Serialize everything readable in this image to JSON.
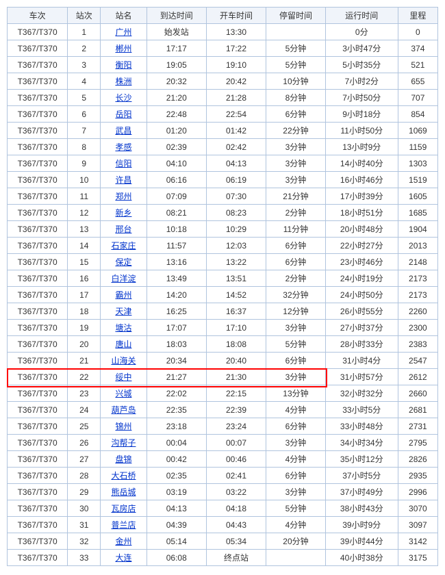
{
  "table": {
    "columns": [
      "车次",
      "站次",
      "站名",
      "到达时间",
      "开车时间",
      "停留时间",
      "运行时间",
      "里程"
    ],
    "highlight_row_index": 21,
    "highlight_color": "#ff0000",
    "link_color": "#0033cc",
    "border_color": "#b0c4de",
    "header_bg": "#f0f4fa",
    "rows": [
      {
        "train": "T367/T370",
        "seq": "1",
        "station": "广州",
        "arrive": "始发站",
        "depart": "13:30",
        "stop": "",
        "run": "0分",
        "dist": "0"
      },
      {
        "train": "T367/T370",
        "seq": "2",
        "station": "郴州",
        "arrive": "17:17",
        "depart": "17:22",
        "stop": "5分钟",
        "run": "3小时47分",
        "dist": "374"
      },
      {
        "train": "T367/T370",
        "seq": "3",
        "station": "衡阳",
        "arrive": "19:05",
        "depart": "19:10",
        "stop": "5分钟",
        "run": "5小时35分",
        "dist": "521"
      },
      {
        "train": "T367/T370",
        "seq": "4",
        "station": "株洲",
        "arrive": "20:32",
        "depart": "20:42",
        "stop": "10分钟",
        "run": "7小时2分",
        "dist": "655"
      },
      {
        "train": "T367/T370",
        "seq": "5",
        "station": "长沙",
        "arrive": "21:20",
        "depart": "21:28",
        "stop": "8分钟",
        "run": "7小时50分",
        "dist": "707"
      },
      {
        "train": "T367/T370",
        "seq": "6",
        "station": "岳阳",
        "arrive": "22:48",
        "depart": "22:54",
        "stop": "6分钟",
        "run": "9小时18分",
        "dist": "854"
      },
      {
        "train": "T367/T370",
        "seq": "7",
        "station": "武昌",
        "arrive": "01:20",
        "depart": "01:42",
        "stop": "22分钟",
        "run": "11小时50分",
        "dist": "1069"
      },
      {
        "train": "T367/T370",
        "seq": "8",
        "station": "孝感",
        "arrive": "02:39",
        "depart": "02:42",
        "stop": "3分钟",
        "run": "13小时9分",
        "dist": "1159"
      },
      {
        "train": "T367/T370",
        "seq": "9",
        "station": "信阳",
        "arrive": "04:10",
        "depart": "04:13",
        "stop": "3分钟",
        "run": "14小时40分",
        "dist": "1303"
      },
      {
        "train": "T367/T370",
        "seq": "10",
        "station": "许昌",
        "arrive": "06:16",
        "depart": "06:19",
        "stop": "3分钟",
        "run": "16小时46分",
        "dist": "1519"
      },
      {
        "train": "T367/T370",
        "seq": "11",
        "station": "郑州",
        "arrive": "07:09",
        "depart": "07:30",
        "stop": "21分钟",
        "run": "17小时39分",
        "dist": "1605"
      },
      {
        "train": "T367/T370",
        "seq": "12",
        "station": "新乡",
        "arrive": "08:21",
        "depart": "08:23",
        "stop": "2分钟",
        "run": "18小时51分",
        "dist": "1685"
      },
      {
        "train": "T367/T370",
        "seq": "13",
        "station": "邢台",
        "arrive": "10:18",
        "depart": "10:29",
        "stop": "11分钟",
        "run": "20小时48分",
        "dist": "1904"
      },
      {
        "train": "T367/T370",
        "seq": "14",
        "station": "石家庄",
        "arrive": "11:57",
        "depart": "12:03",
        "stop": "6分钟",
        "run": "22小时27分",
        "dist": "2013"
      },
      {
        "train": "T367/T370",
        "seq": "15",
        "station": "保定",
        "arrive": "13:16",
        "depart": "13:22",
        "stop": "6分钟",
        "run": "23小时46分",
        "dist": "2148"
      },
      {
        "train": "T367/T370",
        "seq": "16",
        "station": "白洋淀",
        "arrive": "13:49",
        "depart": "13:51",
        "stop": "2分钟",
        "run": "24小时19分",
        "dist": "2173"
      },
      {
        "train": "T367/T370",
        "seq": "17",
        "station": "霸州",
        "arrive": "14:20",
        "depart": "14:52",
        "stop": "32分钟",
        "run": "24小时50分",
        "dist": "2173"
      },
      {
        "train": "T367/T370",
        "seq": "18",
        "station": "天津",
        "arrive": "16:25",
        "depart": "16:37",
        "stop": "12分钟",
        "run": "26小时55分",
        "dist": "2260"
      },
      {
        "train": "T367/T370",
        "seq": "19",
        "station": "塘沽",
        "arrive": "17:07",
        "depart": "17:10",
        "stop": "3分钟",
        "run": "27小时37分",
        "dist": "2300"
      },
      {
        "train": "T367/T370",
        "seq": "20",
        "station": "唐山",
        "arrive": "18:03",
        "depart": "18:08",
        "stop": "5分钟",
        "run": "28小时33分",
        "dist": "2383"
      },
      {
        "train": "T367/T370",
        "seq": "21",
        "station": "山海关",
        "arrive": "20:34",
        "depart": "20:40",
        "stop": "6分钟",
        "run": "31小时4分",
        "dist": "2547"
      },
      {
        "train": "T367/T370",
        "seq": "22",
        "station": "绥中",
        "arrive": "21:27",
        "depart": "21:30",
        "stop": "3分钟",
        "run": "31小时57分",
        "dist": "2612"
      },
      {
        "train": "T367/T370",
        "seq": "23",
        "station": "兴城",
        "arrive": "22:02",
        "depart": "22:15",
        "stop": "13分钟",
        "run": "32小时32分",
        "dist": "2660"
      },
      {
        "train": "T367/T370",
        "seq": "24",
        "station": "葫芦岛",
        "arrive": "22:35",
        "depart": "22:39",
        "stop": "4分钟",
        "run": "33小时5分",
        "dist": "2681"
      },
      {
        "train": "T367/T370",
        "seq": "25",
        "station": "锦州",
        "arrive": "23:18",
        "depart": "23:24",
        "stop": "6分钟",
        "run": "33小时48分",
        "dist": "2731"
      },
      {
        "train": "T367/T370",
        "seq": "26",
        "station": "沟帮子",
        "arrive": "00:04",
        "depart": "00:07",
        "stop": "3分钟",
        "run": "34小时34分",
        "dist": "2795"
      },
      {
        "train": "T367/T370",
        "seq": "27",
        "station": "盘锦",
        "arrive": "00:42",
        "depart": "00:46",
        "stop": "4分钟",
        "run": "35小时12分",
        "dist": "2826"
      },
      {
        "train": "T367/T370",
        "seq": "28",
        "station": "大石桥",
        "arrive": "02:35",
        "depart": "02:41",
        "stop": "6分钟",
        "run": "37小时5分",
        "dist": "2935"
      },
      {
        "train": "T367/T370",
        "seq": "29",
        "station": "熊岳城",
        "arrive": "03:19",
        "depart": "03:22",
        "stop": "3分钟",
        "run": "37小时49分",
        "dist": "2996"
      },
      {
        "train": "T367/T370",
        "seq": "30",
        "station": "瓦房店",
        "arrive": "04:13",
        "depart": "04:18",
        "stop": "5分钟",
        "run": "38小时43分",
        "dist": "3070"
      },
      {
        "train": "T367/T370",
        "seq": "31",
        "station": "普兰店",
        "arrive": "04:39",
        "depart": "04:43",
        "stop": "4分钟",
        "run": "39小时9分",
        "dist": "3097"
      },
      {
        "train": "T367/T370",
        "seq": "32",
        "station": "金州",
        "arrive": "05:14",
        "depart": "05:34",
        "stop": "20分钟",
        "run": "39小时44分",
        "dist": "3142"
      },
      {
        "train": "T367/T370",
        "seq": "33",
        "station": "大连",
        "arrive": "06:08",
        "depart": "终点站",
        "stop": "",
        "run": "40小时38分",
        "dist": "3175"
      }
    ]
  }
}
